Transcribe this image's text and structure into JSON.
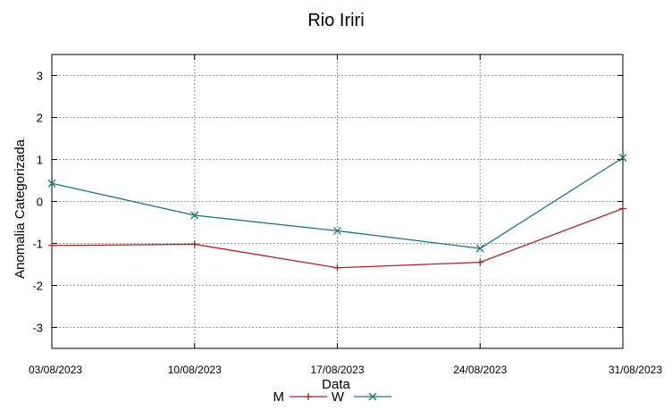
{
  "chart_data": {
    "type": "line",
    "title": "Rio Iriri",
    "xlabel": "Data",
    "ylabel": "Anomalia Categorizada",
    "categories": [
      "03/08/2023",
      "10/08/2023",
      "17/08/2023",
      "24/08/2023",
      "31/08/2023"
    ],
    "ylim": [
      -3.5,
      3.5
    ],
    "yticks": [
      -3,
      -2,
      -1,
      0,
      1,
      2,
      3
    ],
    "grid": true,
    "legend_position": "bottom",
    "series": [
      {
        "name": "M",
        "values": [
          -1.05,
          -1.02,
          -1.58,
          -1.45,
          -0.17
        ],
        "color": "#b22222",
        "marker": "plus"
      },
      {
        "name": "W",
        "values": [
          0.43,
          -0.33,
          -0.7,
          -1.12,
          1.04
        ],
        "color": "#1a7a7a",
        "marker": "cross"
      }
    ]
  }
}
